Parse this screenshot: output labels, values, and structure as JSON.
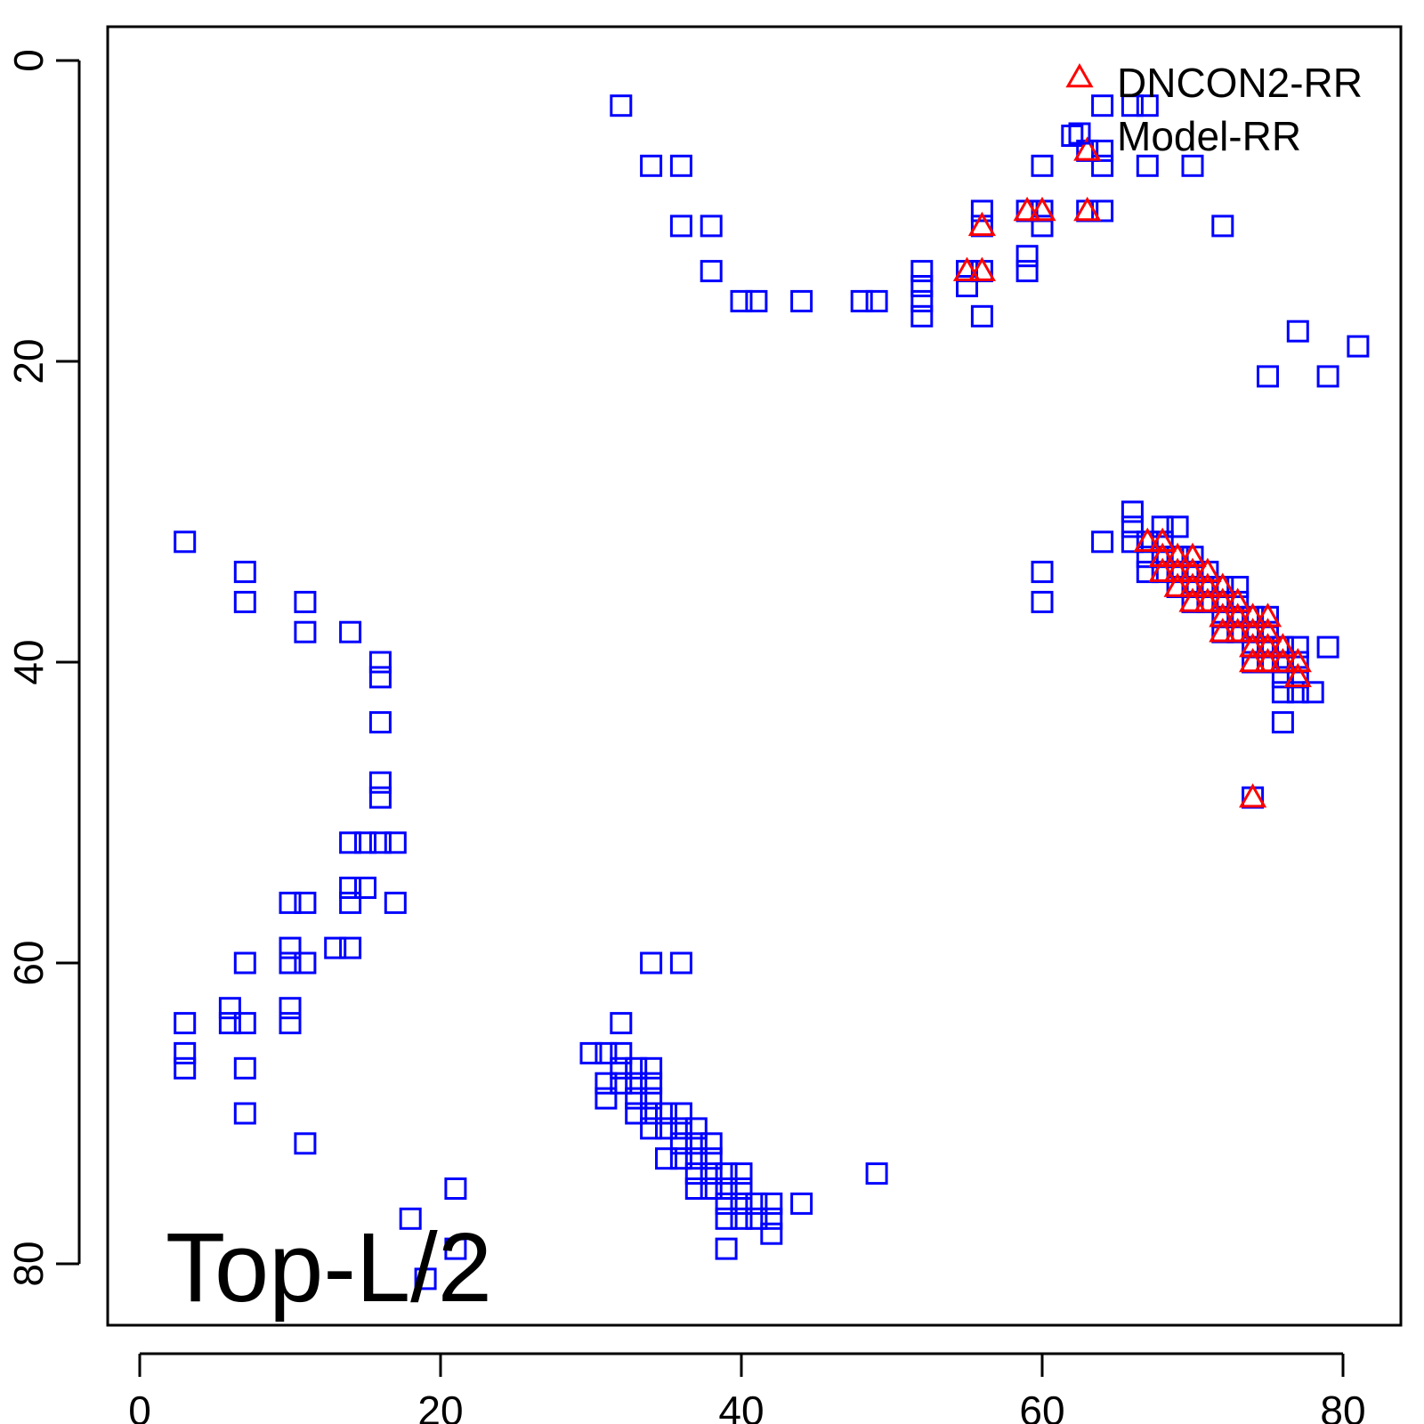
{
  "chart_data": {
    "type": "scatter",
    "title": "",
    "xlabel": "",
    "ylabel": "",
    "xlim": [
      -2,
      84
    ],
    "ylim": [
      0,
      84
    ],
    "y_reversed": true,
    "x_ticks": [
      0,
      20,
      40,
      60,
      80
    ],
    "y_ticks": [
      0,
      20,
      40,
      60,
      80
    ],
    "grid": false,
    "legend_position": "top-right",
    "panel_label": "Top-L/2",
    "colors": {
      "dncon2": "#ff0000",
      "model": "#0000ff"
    },
    "series": [
      {
        "name": "DNCON2-RR",
        "marker": "triangle",
        "points": [
          [
            63,
            6
          ],
          [
            59,
            10
          ],
          [
            60,
            10
          ],
          [
            63,
            10
          ],
          [
            56,
            11
          ],
          [
            55,
            14
          ],
          [
            56,
            14
          ],
          [
            67,
            32
          ],
          [
            68,
            32
          ],
          [
            68,
            33
          ],
          [
            69,
            33
          ],
          [
            70,
            33
          ],
          [
            68,
            34
          ],
          [
            69,
            34
          ],
          [
            70,
            34
          ],
          [
            71,
            34
          ],
          [
            69,
            35
          ],
          [
            70,
            35
          ],
          [
            71,
            35
          ],
          [
            72,
            35
          ],
          [
            70,
            36
          ],
          [
            71,
            36
          ],
          [
            72,
            36
          ],
          [
            73,
            36
          ],
          [
            72,
            37
          ],
          [
            73,
            37
          ],
          [
            74,
            37
          ],
          [
            75,
            37
          ],
          [
            72,
            38
          ],
          [
            73,
            38
          ],
          [
            74,
            38
          ],
          [
            75,
            38
          ],
          [
            74,
            39
          ],
          [
            75,
            39
          ],
          [
            76,
            39
          ],
          [
            74,
            40
          ],
          [
            75,
            40
          ],
          [
            76,
            40
          ],
          [
            77,
            40
          ],
          [
            77,
            41
          ],
          [
            74,
            49
          ]
        ]
      },
      {
        "name": "Model-RR",
        "marker": "square",
        "points": [
          [
            32,
            3
          ],
          [
            66,
            3
          ],
          [
            67,
            3
          ],
          [
            64,
            3
          ],
          [
            62,
            5
          ],
          [
            63,
            6
          ],
          [
            64,
            6
          ],
          [
            34,
            7
          ],
          [
            36,
            7
          ],
          [
            60,
            7
          ],
          [
            64,
            7
          ],
          [
            67,
            7
          ],
          [
            70,
            7
          ],
          [
            56,
            10
          ],
          [
            59,
            10
          ],
          [
            60,
            10
          ],
          [
            63,
            10
          ],
          [
            64,
            10
          ],
          [
            36,
            11
          ],
          [
            38,
            11
          ],
          [
            56,
            11
          ],
          [
            60,
            11
          ],
          [
            72,
            11
          ],
          [
            59,
            13
          ],
          [
            38,
            14
          ],
          [
            52,
            14
          ],
          [
            55,
            14
          ],
          [
            56,
            14
          ],
          [
            59,
            14
          ],
          [
            52,
            15
          ],
          [
            55,
            15
          ],
          [
            40,
            16
          ],
          [
            41,
            16
          ],
          [
            44,
            16
          ],
          [
            48,
            16
          ],
          [
            49,
            16
          ],
          [
            52,
            16
          ],
          [
            52,
            17
          ],
          [
            56,
            17
          ],
          [
            77,
            18
          ],
          [
            81,
            19
          ],
          [
            75,
            21
          ],
          [
            79,
            21
          ],
          [
            66,
            30
          ],
          [
            66,
            31
          ],
          [
            68,
            31
          ],
          [
            69,
            31
          ],
          [
            3,
            32
          ],
          [
            64,
            32
          ],
          [
            66,
            32
          ],
          [
            67,
            32
          ],
          [
            68,
            32
          ],
          [
            67,
            33
          ],
          [
            68,
            33
          ],
          [
            69,
            33
          ],
          [
            70,
            33
          ],
          [
            67,
            34
          ],
          [
            68,
            34
          ],
          [
            69,
            34
          ],
          [
            70,
            34
          ],
          [
            71,
            34
          ],
          [
            7,
            34
          ],
          [
            60,
            34
          ],
          [
            69,
            35
          ],
          [
            70,
            35
          ],
          [
            71,
            35
          ],
          [
            72,
            35
          ],
          [
            73,
            35
          ],
          [
            7,
            36
          ],
          [
            11,
            36
          ],
          [
            60,
            36
          ],
          [
            70,
            36
          ],
          [
            71,
            36
          ],
          [
            72,
            36
          ],
          [
            73,
            36
          ],
          [
            72,
            37
          ],
          [
            73,
            37
          ],
          [
            74,
            37
          ],
          [
            75,
            37
          ],
          [
            11,
            38
          ],
          [
            14,
            38
          ],
          [
            72,
            38
          ],
          [
            73,
            38
          ],
          [
            74,
            38
          ],
          [
            75,
            38
          ],
          [
            74,
            39
          ],
          [
            75,
            39
          ],
          [
            76,
            39
          ],
          [
            77,
            39
          ],
          [
            79,
            39
          ],
          [
            16,
            40
          ],
          [
            74,
            40
          ],
          [
            75,
            40
          ],
          [
            76,
            40
          ],
          [
            77,
            40
          ],
          [
            16,
            41
          ],
          [
            76,
            41
          ],
          [
            77,
            41
          ],
          [
            76,
            42
          ],
          [
            77,
            42
          ],
          [
            78,
            42
          ],
          [
            16,
            44
          ],
          [
            76,
            44
          ],
          [
            16,
            48
          ],
          [
            16,
            49
          ],
          [
            74,
            49
          ],
          [
            14,
            52
          ],
          [
            15,
            52
          ],
          [
            16,
            52
          ],
          [
            17,
            52
          ],
          [
            14,
            55
          ],
          [
            15,
            55
          ],
          [
            10,
            56
          ],
          [
            11,
            56
          ],
          [
            14,
            56
          ],
          [
            17,
            56
          ],
          [
            10,
            59
          ],
          [
            13,
            59
          ],
          [
            14,
            59
          ],
          [
            7,
            60
          ],
          [
            10,
            60
          ],
          [
            11,
            60
          ],
          [
            34,
            60
          ],
          [
            36,
            60
          ],
          [
            6,
            63
          ],
          [
            10,
            63
          ],
          [
            3,
            64
          ],
          [
            6,
            64
          ],
          [
            7,
            64
          ],
          [
            10,
            64
          ],
          [
            32,
            64
          ],
          [
            3,
            66
          ],
          [
            30,
            66
          ],
          [
            31,
            66
          ],
          [
            32,
            66
          ],
          [
            3,
            67
          ],
          [
            7,
            67
          ],
          [
            32,
            67
          ],
          [
            33,
            67
          ],
          [
            34,
            67
          ],
          [
            31,
            68
          ],
          [
            32,
            68
          ],
          [
            33,
            68
          ],
          [
            34,
            68
          ],
          [
            31,
            69
          ],
          [
            33,
            69
          ],
          [
            34,
            69
          ],
          [
            7,
            70
          ],
          [
            33,
            70
          ],
          [
            34,
            70
          ],
          [
            35,
            70
          ],
          [
            36,
            70
          ],
          [
            34,
            71
          ],
          [
            35,
            71
          ],
          [
            36,
            71
          ],
          [
            37,
            71
          ],
          [
            36,
            72
          ],
          [
            37,
            72
          ],
          [
            38,
            72
          ],
          [
            11,
            72
          ],
          [
            35,
            73
          ],
          [
            36,
            73
          ],
          [
            37,
            73
          ],
          [
            38,
            73
          ],
          [
            37,
            74
          ],
          [
            38,
            74
          ],
          [
            39,
            74
          ],
          [
            40,
            74
          ],
          [
            49,
            74
          ],
          [
            37,
            75
          ],
          [
            38,
            75
          ],
          [
            39,
            75
          ],
          [
            40,
            75
          ],
          [
            21,
            75
          ],
          [
            39,
            76
          ],
          [
            40,
            76
          ],
          [
            41,
            76
          ],
          [
            42,
            76
          ],
          [
            44,
            76
          ],
          [
            18,
            77
          ],
          [
            39,
            77
          ],
          [
            40,
            77
          ],
          [
            41,
            77
          ],
          [
            42,
            77
          ],
          [
            42,
            78
          ],
          [
            39,
            79
          ],
          [
            21,
            79
          ],
          [
            19,
            81
          ]
        ]
      }
    ]
  }
}
